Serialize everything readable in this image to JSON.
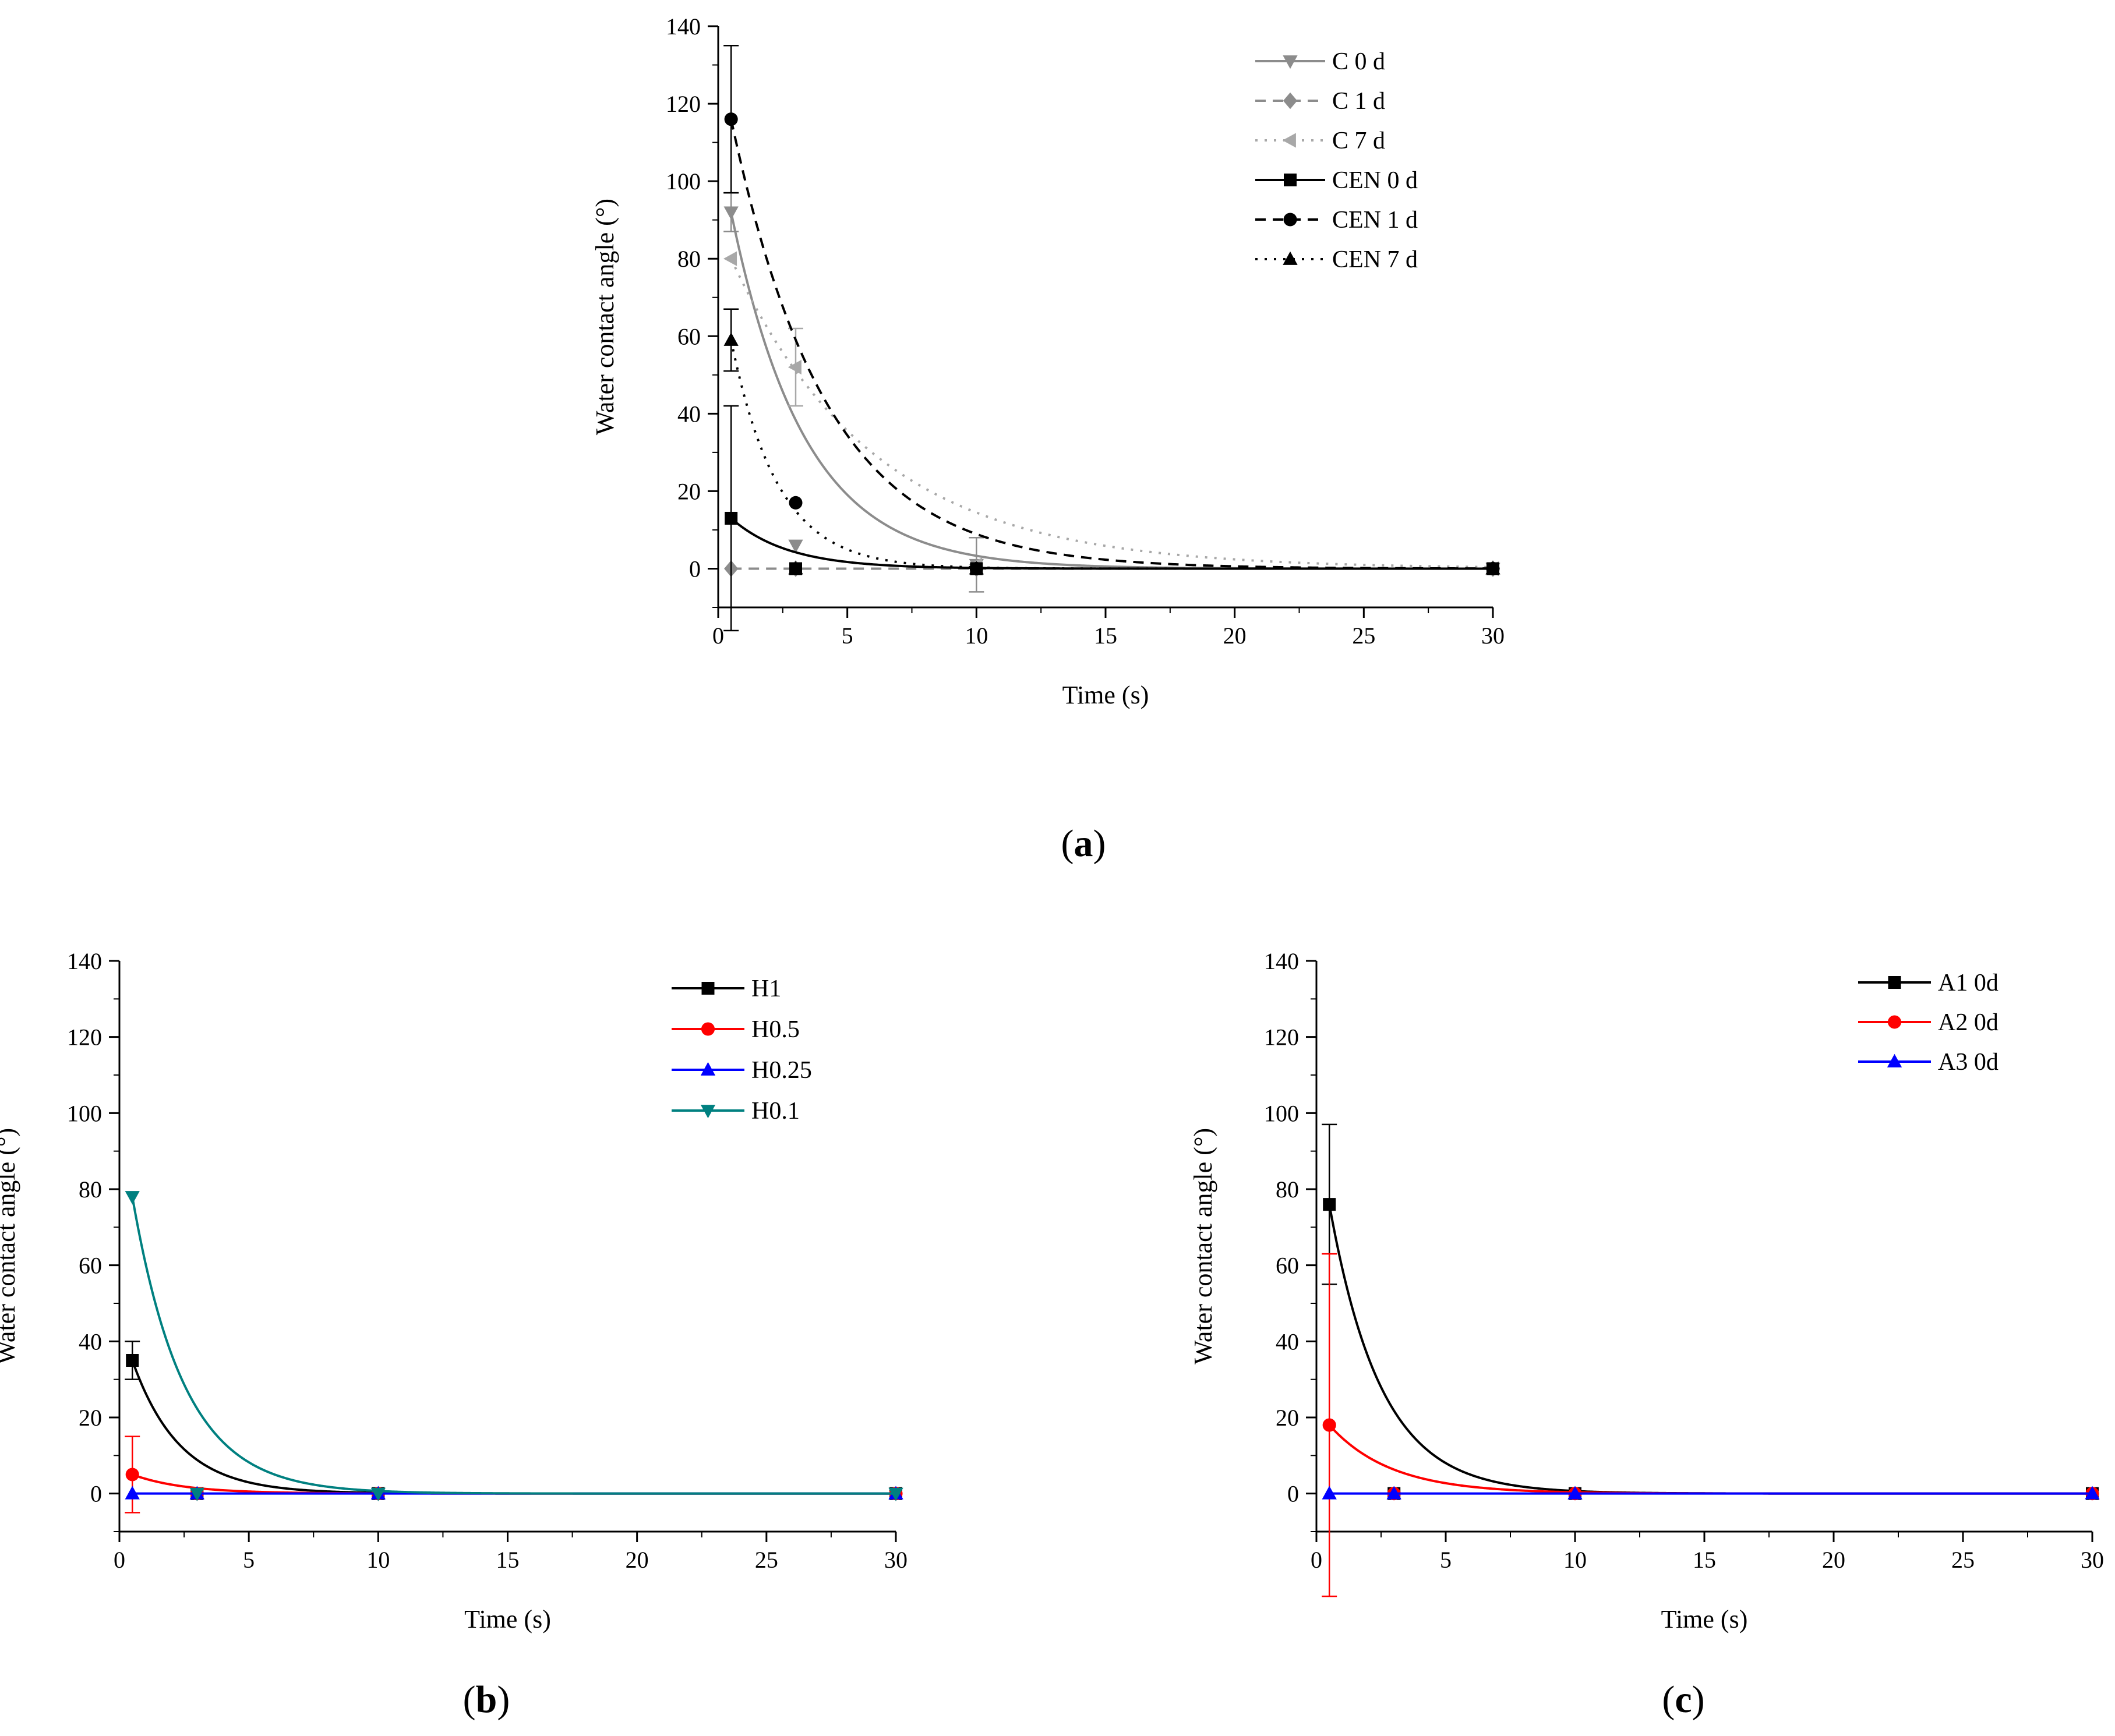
{
  "chart_data": [
    {
      "type": "line",
      "panel_label": "a",
      "xlabel": "Time (s)",
      "ylabel": "Water contact angle (°)",
      "xlim": [
        0,
        30
      ],
      "ylim": [
        -10,
        140
      ],
      "xticks": [
        0,
        5,
        10,
        15,
        20,
        25,
        30
      ],
      "yticks": [
        0,
        20,
        40,
        60,
        80,
        100,
        120,
        140
      ],
      "legend_position": "top-right",
      "series": [
        {
          "name": "C 0 d",
          "color": "#8c8c8c",
          "dash": "solid",
          "marker": "triangle-down",
          "x": [
            0.5,
            3,
            10,
            30
          ],
          "y": [
            92,
            6,
            1,
            0
          ],
          "err": [
            5,
            0,
            7,
            0
          ],
          "decay": 0.35
        },
        {
          "name": "C 1 d",
          "color": "#8c8c8c",
          "dash": "dashed",
          "marker": "diamond",
          "x": [
            0.5,
            3,
            10,
            30
          ],
          "y": [
            0,
            0,
            0,
            0
          ],
          "err": [
            0,
            0,
            0,
            0
          ],
          "decay": 0.3
        },
        {
          "name": "C 7 d",
          "color": "#a8a8a8",
          "dash": "dotted",
          "marker": "triangle-left",
          "x": [
            0.5,
            3,
            10,
            30
          ],
          "y": [
            80,
            52,
            1,
            0
          ],
          "err": [
            0,
            10,
            0,
            0
          ],
          "decay": 0.18
        },
        {
          "name": "CEN 0 d",
          "color": "#000000",
          "dash": "solid",
          "marker": "square",
          "x": [
            0.5,
            3,
            10,
            30
          ],
          "y": [
            13,
            0,
            0,
            0
          ],
          "err": [
            29,
            0,
            0,
            0
          ],
          "decay": 0.45
        },
        {
          "name": "CEN 1 d",
          "color": "#000000",
          "dash": "dashed",
          "marker": "circle",
          "x": [
            0.5,
            3,
            10,
            30
          ],
          "y": [
            116,
            17,
            0,
            0
          ],
          "err": [
            19,
            0,
            0,
            0
          ],
          "decay": 0.27
        },
        {
          "name": "CEN 7 d",
          "color": "#000000",
          "dash": "dotted",
          "marker": "triangle-up",
          "x": [
            0.5,
            3,
            10,
            30
          ],
          "y": [
            59,
            0,
            0,
            0
          ],
          "err": [
            8,
            0,
            0,
            0
          ],
          "decay": 0.55
        }
      ]
    },
    {
      "type": "line",
      "panel_label": "b",
      "xlabel": "Time (s)",
      "ylabel": "Water contact angle (°)",
      "xlim": [
        0,
        30
      ],
      "ylim": [
        -10,
        140
      ],
      "xticks": [
        0,
        5,
        10,
        15,
        20,
        25,
        30
      ],
      "yticks": [
        0,
        20,
        40,
        60,
        80,
        100,
        120,
        140
      ],
      "legend_position": "top-right",
      "series": [
        {
          "name": "H1",
          "color": "#000000",
          "dash": "solid",
          "marker": "square",
          "x": [
            0.5,
            3,
            10,
            30
          ],
          "y": [
            35,
            0,
            0,
            0
          ],
          "err": [
            5,
            0,
            0,
            0
          ],
          "decay": 0.55
        },
        {
          "name": "H0.5",
          "color": "#ff0000",
          "dash": "solid",
          "marker": "circle",
          "x": [
            0.5,
            3,
            10,
            30
          ],
          "y": [
            5,
            0,
            0,
            0
          ],
          "err": [
            10,
            0,
            0,
            0
          ],
          "decay": 0.5
        },
        {
          "name": "H0.25",
          "color": "#0000ff",
          "dash": "solid",
          "marker": "triangle-up",
          "x": [
            0.5,
            3,
            10,
            30
          ],
          "y": [
            0,
            0,
            0,
            0
          ],
          "err": [
            0,
            0,
            0,
            0
          ],
          "decay": 0.5
        },
        {
          "name": "H0.1",
          "color": "#008080",
          "dash": "solid",
          "marker": "triangle-down",
          "x": [
            0.5,
            3,
            10,
            30
          ],
          "y": [
            78,
            0,
            0,
            0
          ],
          "err": [
            0,
            0,
            0,
            0
          ],
          "decay": 0.5
        }
      ]
    },
    {
      "type": "line",
      "panel_label": "c",
      "xlabel": "Time (s)",
      "ylabel": "Water contact angle (°)",
      "xlim": [
        0,
        30
      ],
      "ylim": [
        -10,
        140
      ],
      "xticks": [
        0,
        5,
        10,
        15,
        20,
        25,
        30
      ],
      "yticks": [
        0,
        20,
        40,
        60,
        80,
        100,
        120,
        140
      ],
      "legend_position": "top-right",
      "series": [
        {
          "name": "A1 0d",
          "color": "#000000",
          "dash": "solid",
          "marker": "square",
          "x": [
            0.5,
            3,
            10,
            30
          ],
          "y": [
            76,
            0,
            0,
            0
          ],
          "err": [
            21,
            0,
            0,
            0
          ],
          "decay": 0.5
        },
        {
          "name": "A2 0d",
          "color": "#ff0000",
          "dash": "solid",
          "marker": "circle",
          "x": [
            0.5,
            3,
            10,
            30
          ],
          "y": [
            18,
            0,
            0,
            0
          ],
          "err": [
            45,
            0,
            0,
            0
          ],
          "decay": 0.42
        },
        {
          "name": "A3 0d",
          "color": "#0000ff",
          "dash": "solid",
          "marker": "triangle-up",
          "x": [
            0.5,
            3,
            10,
            30
          ],
          "y": [
            0,
            0,
            0,
            0
          ],
          "err": [
            0,
            0,
            0,
            0
          ],
          "decay": 0.5
        }
      ]
    }
  ]
}
